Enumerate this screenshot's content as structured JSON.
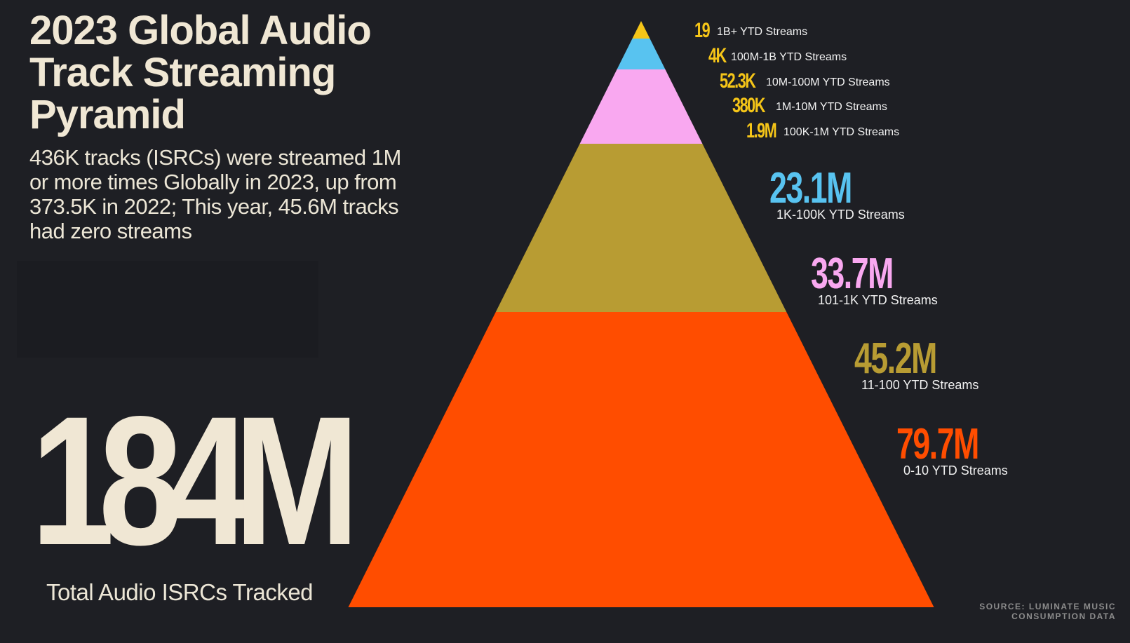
{
  "header": {
    "title": "2023 Global Audio Track Streaming Pyramid",
    "subtitle": "436K tracks (ISRCs) were streamed 1M or more times Globally in 2023, up from 373.5K in 2022; This year, 45.6M tracks had zero streams"
  },
  "total": {
    "value": "184M",
    "label": "Total Audio ISRCs Tracked"
  },
  "source": "SOURCE: LUMINATE MUSIC CONSUMPTION DATA",
  "chart_data": {
    "type": "pyramid",
    "title": "2023 Global Audio Track Streaming Pyramid",
    "tiers": [
      {
        "label": "1B+ YTD Streams",
        "value_text": "19",
        "value": 19,
        "color": "#f5c518"
      },
      {
        "label": "100M-1B YTD Streams",
        "value_text": "4K",
        "value": 4000,
        "color": "#58c3f0"
      },
      {
        "label": "10M-100M YTD Streams",
        "value_text": "52.3K",
        "value": 52300,
        "color": "#f9a8f0"
      },
      {
        "label": "1M-10M YTD Streams",
        "value_text": "380K",
        "value": 380000,
        "color": "#f9a8f0"
      },
      {
        "label": "100K-1M YTD Streams",
        "value_text": "1.9M",
        "value": 1900000,
        "color": "#f9a8f0"
      },
      {
        "label": "1K-100K YTD Streams",
        "value_text": "23.1M",
        "value": 23100000,
        "color": "#b89c33"
      },
      {
        "label": "101-1K YTD Streams",
        "value_text": "33.7M",
        "value": 33700000,
        "color": "#b89c33"
      },
      {
        "label": "11-100 YTD Streams",
        "value_text": "45.2M",
        "value": 45200000,
        "color": "#ff4d00"
      },
      {
        "label": "0-10 YTD Streams",
        "value_text": "79.7M",
        "value": 79700000,
        "color": "#ff4d00"
      }
    ],
    "label_colors": [
      "#f5c518",
      "#f5c518",
      "#f5c518",
      "#f5c518",
      "#f5c518",
      "#58c3f0",
      "#f9a8f0",
      "#b89c33",
      "#ff4d00"
    ]
  }
}
